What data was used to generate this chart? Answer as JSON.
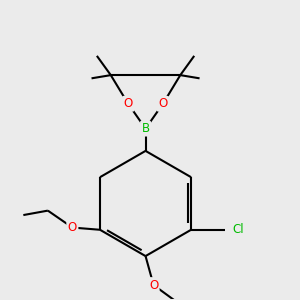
{
  "bg_color": "#ebebeb",
  "line_color": "#000000",
  "bond_width": 1.5,
  "atom_colors": {
    "B": "#00bb00",
    "O": "#ff0000",
    "Cl": "#00bb00",
    "C": "#000000"
  },
  "font_size_atom": 8.5,
  "font_size_small": 7.0
}
